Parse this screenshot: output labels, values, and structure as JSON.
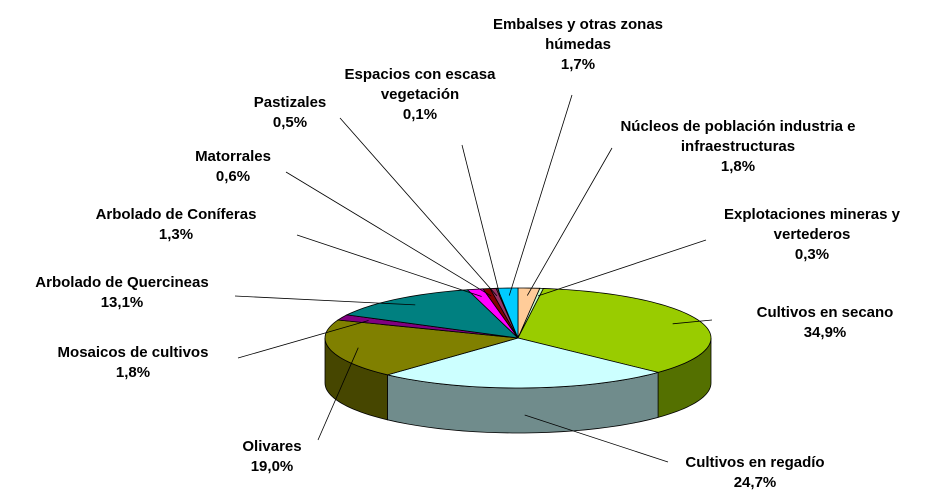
{
  "chart_data": {
    "type": "pie3d",
    "categories": [
      "Núcleos de población industria e infraestructuras",
      "Explotaciones mineras y vertederos",
      "Cultivos en secano",
      "Cultivos en regadío",
      "Olivares",
      "Mosaicos de cultivos",
      "Arbolado de Quercineas",
      "Arbolado de Coníferas",
      "Matorrales",
      "Pastizales",
      "Espacios con escasa vegetación",
      "Embalses y otras zonas húmedas"
    ],
    "values": [
      1.8,
      0.3,
      34.9,
      24.7,
      19.0,
      1.8,
      13.1,
      1.3,
      0.6,
      0.5,
      0.1,
      1.7
    ],
    "value_labels": [
      "1,8%",
      "0,3%",
      "34,9%",
      "24,7%",
      "19,0%",
      "1,8%",
      "13,1%",
      "1,3%",
      "0,6%",
      "0,5%",
      "0,1%",
      "1,7%"
    ],
    "colors": [
      "#ffcc99",
      "#ccffcc",
      "#99cc00",
      "#ccffff",
      "#808000",
      "#800080",
      "#008080",
      "#ff00ff",
      "#800000",
      "#993366",
      "#ffff99",
      "#00ccff"
    ]
  }
}
